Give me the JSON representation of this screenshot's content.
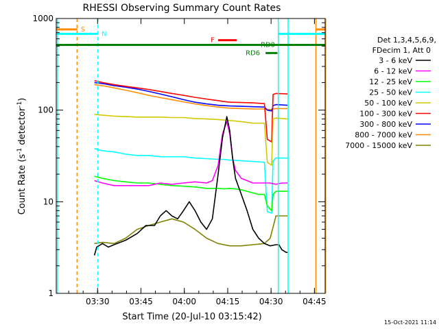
{
  "chart_data": {
    "type": "line",
    "title": "RHESSI Observing Summary Count Rates",
    "xlabel": "Start Time (20-Jul-10 03:15:42)",
    "ylabel_main": "Count Rate (s",
    "ylabel_sup1": "-1",
    "ylabel_mid": " detector",
    "ylabel_sup2": "-1",
    "ylabel_end": ")",
    "yscale": "log",
    "ylim": [
      1,
      1000
    ],
    "xlim_minutes": [
      0,
      93
    ],
    "x_ticks": [
      {
        "label": "03:30",
        "minute": 14.3
      },
      {
        "label": "03:45",
        "minute": 29.3
      },
      {
        "label": "04:00",
        "minute": 44.3
      },
      {
        "label": "04:15",
        "minute": 59.3
      },
      {
        "label": "04:30",
        "minute": 74.3
      },
      {
        "label": "04:45",
        "minute": 89.3
      }
    ],
    "y_ticks": [
      {
        "label": "1",
        "value": 1
      },
      {
        "label": "10",
        "value": 10
      },
      {
        "label": "100",
        "value": 100
      },
      {
        "label": "1000",
        "value": 1000
      }
    ],
    "legend": {
      "header": [
        "Det 1,3,4,5,6,9,",
        "FDecim 1, Att 0"
      ],
      "entries": [
        {
          "label": "3 - 6 keV",
          "color": "#000000"
        },
        {
          "label": "6 - 12 keV",
          "color": "#ff00ff"
        },
        {
          "label": "12 - 25 keV",
          "color": "#00ff00"
        },
        {
          "label": "25 - 50 keV",
          "color": "#00ffff"
        },
        {
          "label": "50 - 100 keV",
          "color": "#d4c800"
        },
        {
          "label": "100 - 300 keV",
          "color": "#ff0000"
        },
        {
          "label": "300 - 800 keV",
          "color": "#0000ff"
        },
        {
          "label": "800 - 7000 keV",
          "color": "#ff8c00"
        },
        {
          "label": "7000 - 15000 keV",
          "color": "#808000"
        }
      ]
    },
    "series": [
      {
        "name": "3 - 6 keV",
        "color": "#000000",
        "data": [
          [
            13.2,
            2.6
          ],
          [
            14,
            3.2
          ],
          [
            16,
            3.5
          ],
          [
            18,
            3.2
          ],
          [
            20,
            3.4
          ],
          [
            24,
            3.8
          ],
          [
            28,
            4.5
          ],
          [
            31,
            5.5
          ],
          [
            34,
            5.5
          ],
          [
            36,
            7
          ],
          [
            38,
            8
          ],
          [
            40,
            7
          ],
          [
            42,
            6.5
          ],
          [
            44,
            8
          ],
          [
            46,
            10
          ],
          [
            48,
            8
          ],
          [
            50,
            6
          ],
          [
            52,
            5
          ],
          [
            54,
            6.5
          ],
          [
            56,
            20
          ],
          [
            57.5,
            50
          ],
          [
            59,
            85
          ],
          [
            60,
            60
          ],
          [
            61,
            30
          ],
          [
            62,
            18
          ],
          [
            64,
            12
          ],
          [
            66,
            8
          ],
          [
            68,
            5
          ],
          [
            70,
            4
          ],
          [
            72,
            3.5
          ],
          [
            74,
            3.3
          ],
          [
            76,
            3.4
          ],
          [
            77,
            3.4
          ],
          [
            78,
            3
          ],
          [
            79.5,
            2.8
          ],
          [
            80,
            2.8
          ]
        ]
      },
      {
        "name": "6 - 12 keV",
        "color": "#ff00ff",
        "data": [
          [
            13.2,
            17
          ],
          [
            16,
            16
          ],
          [
            20,
            15
          ],
          [
            24,
            15
          ],
          [
            28,
            15
          ],
          [
            32,
            15
          ],
          [
            36,
            16
          ],
          [
            40,
            15.5
          ],
          [
            44,
            16
          ],
          [
            48,
            16.5
          ],
          [
            52,
            16
          ],
          [
            54,
            17
          ],
          [
            56,
            25
          ],
          [
            57.5,
            55
          ],
          [
            59,
            75
          ],
          [
            60,
            55
          ],
          [
            61,
            30
          ],
          [
            62,
            22
          ],
          [
            64,
            18
          ],
          [
            66,
            17
          ],
          [
            68,
            16
          ],
          [
            70,
            16
          ],
          [
            72,
            16
          ],
          [
            74,
            16
          ],
          [
            76,
            15.5
          ],
          [
            78,
            16
          ],
          [
            80,
            16
          ]
        ]
      },
      {
        "name": "12 - 25 keV",
        "color": "#00ff00",
        "data": [
          [
            13.2,
            19
          ],
          [
            16,
            18
          ],
          [
            20,
            17
          ],
          [
            24,
            16.5
          ],
          [
            28,
            16
          ],
          [
            32,
            16
          ],
          [
            36,
            15.5
          ],
          [
            40,
            15
          ],
          [
            44,
            14.8
          ],
          [
            48,
            14.5
          ],
          [
            52,
            14
          ],
          [
            56,
            14
          ],
          [
            58,
            13.8
          ],
          [
            60,
            14
          ],
          [
            62,
            13.8
          ],
          [
            64,
            13.5
          ],
          [
            66,
            13
          ],
          [
            68,
            12.5
          ],
          [
            70,
            12
          ],
          [
            72,
            12
          ],
          [
            73,
            9
          ],
          [
            74.5,
            8
          ],
          [
            75,
            12
          ],
          [
            76,
            13
          ],
          [
            78,
            13
          ],
          [
            80,
            13
          ]
        ]
      },
      {
        "name": "25 - 50 keV",
        "color": "#00ffff",
        "data": [
          [
            13.2,
            38
          ],
          [
            16,
            36
          ],
          [
            20,
            35
          ],
          [
            24,
            33
          ],
          [
            28,
            32
          ],
          [
            32,
            32
          ],
          [
            36,
            31
          ],
          [
            40,
            31
          ],
          [
            44,
            31
          ],
          [
            48,
            30
          ],
          [
            52,
            29.5
          ],
          [
            56,
            29
          ],
          [
            58,
            29
          ],
          [
            60,
            28.5
          ],
          [
            64,
            28
          ],
          [
            68,
            27.5
          ],
          [
            72,
            27
          ],
          [
            73,
            7.8
          ],
          [
            74.5,
            7.5
          ],
          [
            75,
            28
          ],
          [
            76,
            30
          ],
          [
            78,
            30
          ],
          [
            80,
            30
          ]
        ]
      },
      {
        "name": "50 - 100 keV",
        "color": "#d4c800",
        "data": [
          [
            13.2,
            90
          ],
          [
            16,
            88
          ],
          [
            20,
            86
          ],
          [
            24,
            85
          ],
          [
            28,
            84
          ],
          [
            32,
            84
          ],
          [
            36,
            84
          ],
          [
            40,
            83
          ],
          [
            44,
            83
          ],
          [
            48,
            81
          ],
          [
            52,
            80
          ],
          [
            56,
            79
          ],
          [
            60,
            77
          ],
          [
            64,
            75
          ],
          [
            68,
            72
          ],
          [
            72,
            72
          ],
          [
            73,
            27
          ],
          [
            74.5,
            25
          ],
          [
            75,
            80
          ],
          [
            76,
            82
          ],
          [
            78,
            81
          ],
          [
            80,
            80
          ]
        ]
      },
      {
        "name": "100 - 300 keV",
        "color": "#ff0000",
        "data": [
          [
            13.2,
            210
          ],
          [
            16,
            200
          ],
          [
            20,
            190
          ],
          [
            24,
            182
          ],
          [
            28,
            175
          ],
          [
            32,
            168
          ],
          [
            36,
            160
          ],
          [
            40,
            152
          ],
          [
            44,
            145
          ],
          [
            48,
            138
          ],
          [
            52,
            132
          ],
          [
            56,
            127
          ],
          [
            58,
            124
          ],
          [
            60,
            122
          ],
          [
            64,
            121
          ],
          [
            68,
            120
          ],
          [
            72,
            118
          ],
          [
            73,
            48
          ],
          [
            74.5,
            45
          ],
          [
            75,
            148
          ],
          [
            76,
            152
          ],
          [
            78,
            151
          ],
          [
            80,
            150
          ]
        ]
      },
      {
        "name": "300 - 800 keV",
        "color": "#0000ff",
        "data": [
          [
            13.2,
            200
          ],
          [
            16,
            195
          ],
          [
            20,
            185
          ],
          [
            24,
            178
          ],
          [
            28,
            170
          ],
          [
            32,
            160
          ],
          [
            36,
            150
          ],
          [
            40,
            140
          ],
          [
            44,
            130
          ],
          [
            48,
            122
          ],
          [
            52,
            117
          ],
          [
            56,
            113
          ],
          [
            60,
            111
          ],
          [
            64,
            110
          ],
          [
            68,
            109
          ],
          [
            72,
            108
          ],
          [
            73,
            100
          ],
          [
            74.5,
            98
          ],
          [
            75,
            112
          ],
          [
            76,
            115
          ],
          [
            78,
            114
          ],
          [
            80,
            113
          ]
        ]
      },
      {
        "name": "800 - 7000 keV",
        "color": "#ff8c00",
        "data": [
          [
            13.2,
            190
          ],
          [
            16,
            185
          ],
          [
            20,
            175
          ],
          [
            24,
            165
          ],
          [
            28,
            155
          ],
          [
            32,
            145
          ],
          [
            36,
            137
          ],
          [
            40,
            130
          ],
          [
            44,
            123
          ],
          [
            48,
            117
          ],
          [
            52,
            112
          ],
          [
            56,
            108
          ],
          [
            60,
            105
          ],
          [
            64,
            104
          ],
          [
            68,
            103
          ],
          [
            72,
            103
          ],
          [
            73,
            102
          ],
          [
            74.5,
            101
          ],
          [
            75,
            103
          ],
          [
            76,
            104
          ],
          [
            78,
            104
          ],
          [
            80,
            104
          ]
        ]
      },
      {
        "name": "7000 - 15000 keV",
        "color": "#808000",
        "data": [
          [
            13.2,
            3.5
          ],
          [
            16,
            3.6
          ],
          [
            20,
            3.5
          ],
          [
            24,
            4
          ],
          [
            28,
            5
          ],
          [
            32,
            5.5
          ],
          [
            36,
            6
          ],
          [
            40,
            6.5
          ],
          [
            44,
            6
          ],
          [
            48,
            5
          ],
          [
            52,
            4
          ],
          [
            56,
            3.5
          ],
          [
            60,
            3.3
          ],
          [
            64,
            3.3
          ],
          [
            68,
            3.4
          ],
          [
            72,
            3.5
          ],
          [
            74,
            4
          ],
          [
            76,
            7
          ],
          [
            78,
            7
          ],
          [
            80,
            7
          ]
        ]
      }
    ],
    "vertical_markers": [
      {
        "minute": 0.4,
        "color": "#00ffff",
        "style": "solid"
      },
      {
        "minute": 7.2,
        "color": "#ff8c00",
        "style": "dashed"
      },
      {
        "minute": 14.4,
        "color": "#00ffff",
        "style": "dashed"
      },
      {
        "minute": 76.8,
        "color": "#00ffff",
        "style": "solid"
      },
      {
        "minute": 80.2,
        "color": "#00ffff",
        "style": "solid"
      },
      {
        "minute": 89.8,
        "color": "#ff8c00",
        "style": "solid"
      },
      {
        "minute": 93.2,
        "color": "#ff8c00",
        "style": "solid"
      }
    ],
    "flag_bars": [
      {
        "name": "saa",
        "label": "S",
        "color": "#ff8c00",
        "level": 760,
        "segments": [
          [
            0,
            7.3
          ],
          [
            89.7,
            93
          ]
        ],
        "label_minute": 8.5
      },
      {
        "name": "night",
        "label": "N",
        "color": "#00ffff",
        "level": 680,
        "segments": [
          [
            0,
            14.4
          ],
          [
            76.8,
            93
          ]
        ],
        "label_minute": 15.7
      },
      {
        "name": "flare",
        "label": "F",
        "color": "#ff0000",
        "level": 580,
        "segments": [
          [
            56,
            62.4
          ]
        ],
        "label_minute": 53.4
      },
      {
        "name": "rd0",
        "label": "RD0",
        "color": "#008000",
        "level": 515,
        "segments": [
          [
            0,
            93
          ]
        ],
        "label_minute": 70.7
      },
      {
        "name": "rd6",
        "label": "RD6",
        "color": "#008000",
        "level": 420,
        "segments": [
          [
            72.4,
            76.5
          ]
        ],
        "label_minute": 65.5
      }
    ],
    "footer_date": "15-Oct-2021 11:14"
  }
}
